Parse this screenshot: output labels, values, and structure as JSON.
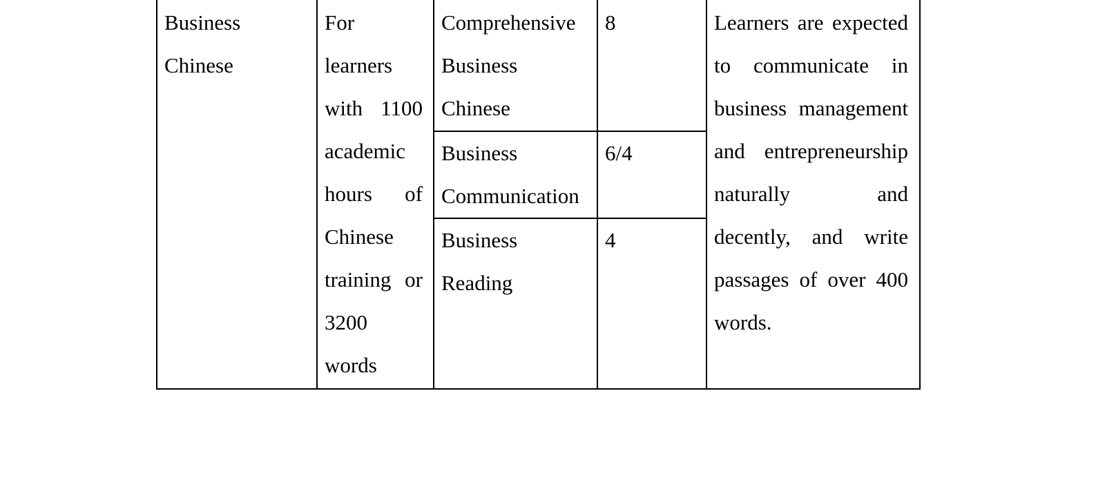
{
  "page": {
    "background": "#ffffff",
    "text_color": "#000000",
    "border_color": "#000000"
  },
  "table": {
    "program": {
      "lines": [
        "Business",
        "Chinese"
      ]
    },
    "audience": {
      "lines": [
        "For",
        "learners",
        "with 1100",
        "academic",
        "hours of",
        "Chinese",
        "training or",
        "3200",
        "words"
      ]
    },
    "courses": [
      {
        "name_lines": [
          "Comprehensive",
          "Business",
          "Chinese"
        ],
        "weekly_hours": "8"
      },
      {
        "name_lines": [
          "Business",
          "Communication"
        ],
        "weekly_hours": "6/4"
      },
      {
        "name_lines": [
          "Business",
          "Reading"
        ],
        "weekly_hours": "4"
      }
    ],
    "outcome": {
      "lines": [
        "Learners are expected",
        "to communicate in",
        "business management",
        "and entrepreneurship",
        "naturally and",
        "decently, and write",
        "passages of over 400",
        "words."
      ]
    }
  }
}
